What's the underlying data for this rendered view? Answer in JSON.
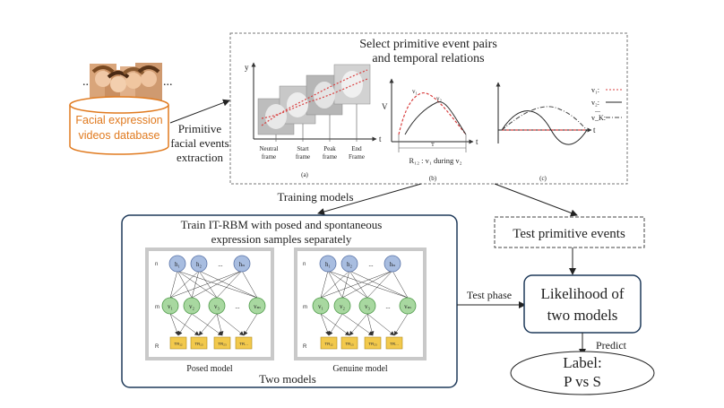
{
  "database": {
    "label_line1": "Facial expression",
    "label_line2": "videos database",
    "ellipsis_left": "...",
    "ellipsis_right": "...",
    "color": "#e07a1f"
  },
  "extraction": {
    "line1": "Primitive",
    "line2": "facial events",
    "line3": "extraction"
  },
  "select_box": {
    "title_line1": "Select primitive event pairs",
    "title_line2": "and temporal relations",
    "panel_a": {
      "y_axis": "y",
      "t_axis": "t",
      "frames": [
        "Neutral\nframe",
        "Start\nframe",
        "Peak\nframe",
        "End\nFrame"
      ],
      "caption": "(a)"
    },
    "panel_b": {
      "v_axis": "V",
      "t_axis": "t",
      "v1": "v₁",
      "v2": "v₂",
      "t_label": "T",
      "relation": "R₁₂ : v₁ during v₂",
      "caption": "(b)"
    },
    "panel_c": {
      "legend": [
        "v₁:",
        "v₂:",
        "...",
        "v_K:"
      ],
      "t_axis": "t",
      "caption": "(c)"
    }
  },
  "training_label": "Training models",
  "train_box": {
    "title_line1": "Train IT-RBM with posed and spontaneous",
    "title_line2": "expression samples separately",
    "footer": "Two models",
    "posed_model": "Posed model",
    "genuine_model": "Genuine model",
    "row_labels": [
      "n",
      "m",
      "R"
    ],
    "hidden": [
      "h₁",
      "h₂",
      "...",
      "hₙ"
    ],
    "visible": [
      "v₁",
      "v₂",
      "v₃",
      "...",
      "vₘ"
    ],
    "relations": [
      "TR₁₂",
      "TR₁₃",
      "TR₂₃",
      "TR..."
    ]
  },
  "test_phase_label": "Test phase",
  "test_box": "Test primitive events",
  "likelihood_box": {
    "line1": "Likelihood of",
    "line2": "two models"
  },
  "predict_label": "Predict",
  "label_ellipse": {
    "line1": "Label:",
    "line2": "P vs S"
  },
  "colors": {
    "accent_blue": "#1f3a5a",
    "hidden_node": "#a8bde0",
    "visible_node": "#a8d8a0",
    "relation_node": "#f2c94c",
    "curve_red": "#d94040"
  }
}
